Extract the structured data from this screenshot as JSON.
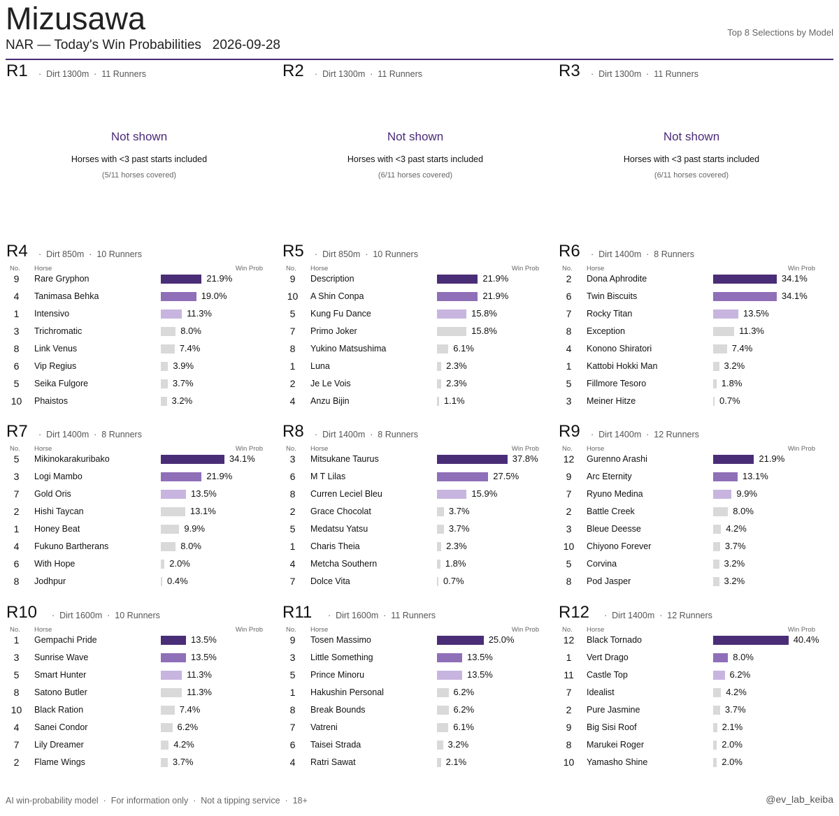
{
  "header": {
    "venue": "Mizusawa",
    "subtitle": "NAR — Today's Win Probabilities",
    "date": "2026-09-28",
    "right_label": "Top 8 Selections by Model"
  },
  "column_headers": {
    "no": "No.",
    "horse": "Horse",
    "prob": "Win Prob"
  },
  "colors": {
    "accent": "#4a2a78",
    "rank1": "#4a2d77",
    "rank2": "#8e6fb8",
    "rank3": "#c7b5df",
    "other": "#d9d9d9"
  },
  "races": [
    {
      "race": "R1",
      "info": "·  Dirt 1300m  ·  11 Runners",
      "not_shown": true,
      "not_shown_title": "Not shown",
      "not_shown_desc": "Horses with <3 past starts included",
      "coverage": "(5/11 horses covered)"
    },
    {
      "race": "R2",
      "info": "·  Dirt 1300m  ·  11 Runners",
      "not_shown": true,
      "not_shown_title": "Not shown",
      "not_shown_desc": "Horses with <3 past starts included",
      "coverage": "(6/11 horses covered)"
    },
    {
      "race": "R3",
      "info": "·  Dirt 1300m  ·  11 Runners",
      "not_shown": true,
      "not_shown_title": "Not shown",
      "not_shown_desc": "Horses with <3 past starts included",
      "coverage": "(6/11 horses covered)"
    },
    {
      "race": "R4",
      "info": "·  Dirt 850m  ·  10 Runners",
      "runners": [
        {
          "no": "9",
          "horse": "Rare Gryphon",
          "prob": 21.9,
          "label": "21.9%"
        },
        {
          "no": "4",
          "horse": "Tanimasa Behka",
          "prob": 19.0,
          "label": "19.0%"
        },
        {
          "no": "1",
          "horse": "Intensivo",
          "prob": 11.3,
          "label": "11.3%"
        },
        {
          "no": "3",
          "horse": "Trichromatic",
          "prob": 8.0,
          "label": "8.0%"
        },
        {
          "no": "8",
          "horse": "Link Venus",
          "prob": 7.4,
          "label": "7.4%"
        },
        {
          "no": "6",
          "horse": "Vip Regius",
          "prob": 3.9,
          "label": "3.9%"
        },
        {
          "no": "5",
          "horse": "Seika Fulgore",
          "prob": 3.7,
          "label": "3.7%"
        },
        {
          "no": "10",
          "horse": "Phaistos",
          "prob": 3.2,
          "label": "3.2%"
        }
      ]
    },
    {
      "race": "R5",
      "info": "·  Dirt 850m  ·  10 Runners",
      "runners": [
        {
          "no": "9",
          "horse": "Description",
          "prob": 21.9,
          "label": "21.9%"
        },
        {
          "no": "10",
          "horse": "A Shin Conpa",
          "prob": 21.9,
          "label": "21.9%"
        },
        {
          "no": "5",
          "horse": "Kung Fu Dance",
          "prob": 15.8,
          "label": "15.8%"
        },
        {
          "no": "7",
          "horse": "Primo Joker",
          "prob": 15.8,
          "label": "15.8%"
        },
        {
          "no": "8",
          "horse": "Yukino Matsushima",
          "prob": 6.1,
          "label": "6.1%"
        },
        {
          "no": "1",
          "horse": "Luna",
          "prob": 2.3,
          "label": "2.3%"
        },
        {
          "no": "2",
          "horse": "Je Le Vois",
          "prob": 2.3,
          "label": "2.3%"
        },
        {
          "no": "4",
          "horse": "Anzu Bijin",
          "prob": 1.1,
          "label": "1.1%"
        }
      ]
    },
    {
      "race": "R6",
      "info": "·  Dirt 1400m  ·  8 Runners",
      "runners": [
        {
          "no": "2",
          "horse": "Dona Aphrodite",
          "prob": 34.1,
          "label": "34.1%"
        },
        {
          "no": "6",
          "horse": "Twin Biscuits",
          "prob": 34.1,
          "label": "34.1%"
        },
        {
          "no": "7",
          "horse": "Rocky Titan",
          "prob": 13.5,
          "label": "13.5%"
        },
        {
          "no": "8",
          "horse": "Exception",
          "prob": 11.3,
          "label": "11.3%"
        },
        {
          "no": "4",
          "horse": "Konono Shiratori",
          "prob": 7.4,
          "label": "7.4%"
        },
        {
          "no": "1",
          "horse": "Kattobi Hokki Man",
          "prob": 3.2,
          "label": "3.2%"
        },
        {
          "no": "5",
          "horse": "Fillmore Tesoro",
          "prob": 1.8,
          "label": "1.8%"
        },
        {
          "no": "3",
          "horse": "Meiner Hitze",
          "prob": 0.7,
          "label": "0.7%"
        }
      ]
    },
    {
      "race": "R7",
      "info": "·  Dirt 1400m  ·  8 Runners",
      "runners": [
        {
          "no": "5",
          "horse": "Mikinokarakuribako",
          "prob": 34.1,
          "label": "34.1%"
        },
        {
          "no": "3",
          "horse": "Logi Mambo",
          "prob": 21.9,
          "label": "21.9%"
        },
        {
          "no": "7",
          "horse": "Gold Oris",
          "prob": 13.5,
          "label": "13.5%"
        },
        {
          "no": "2",
          "horse": "Hishi Taycan",
          "prob": 13.1,
          "label": "13.1%"
        },
        {
          "no": "1",
          "horse": "Honey Beat",
          "prob": 9.9,
          "label": "9.9%"
        },
        {
          "no": "4",
          "horse": "Fukuno Bartherans",
          "prob": 8.0,
          "label": "8.0%"
        },
        {
          "no": "6",
          "horse": "With Hope",
          "prob": 2.0,
          "label": "2.0%"
        },
        {
          "no": "8",
          "horse": "Jodhpur",
          "prob": 0.4,
          "label": "0.4%"
        }
      ]
    },
    {
      "race": "R8",
      "info": "·  Dirt 1400m  ·  8 Runners",
      "runners": [
        {
          "no": "3",
          "horse": "Mitsukane Taurus",
          "prob": 37.8,
          "label": "37.8%"
        },
        {
          "no": "6",
          "horse": "M T Lilas",
          "prob": 27.5,
          "label": "27.5%"
        },
        {
          "no": "8",
          "horse": "Curren Leciel Bleu",
          "prob": 15.9,
          "label": "15.9%"
        },
        {
          "no": "2",
          "horse": "Grace Chocolat",
          "prob": 3.7,
          "label": "3.7%"
        },
        {
          "no": "5",
          "horse": "Medatsu Yatsu",
          "prob": 3.7,
          "label": "3.7%"
        },
        {
          "no": "1",
          "horse": "Charis Theia",
          "prob": 2.3,
          "label": "2.3%"
        },
        {
          "no": "4",
          "horse": "Metcha Southern",
          "prob": 1.8,
          "label": "1.8%"
        },
        {
          "no": "7",
          "horse": "Dolce Vita",
          "prob": 0.7,
          "label": "0.7%"
        }
      ]
    },
    {
      "race": "R9",
      "info": "·  Dirt 1400m  ·  12 Runners",
      "runners": [
        {
          "no": "12",
          "horse": "Gurenno Arashi",
          "prob": 21.9,
          "label": "21.9%"
        },
        {
          "no": "9",
          "horse": "Arc Eternity",
          "prob": 13.1,
          "label": "13.1%"
        },
        {
          "no": "7",
          "horse": "Ryuno Medina",
          "prob": 9.9,
          "label": "9.9%"
        },
        {
          "no": "2",
          "horse": "Battle Creek",
          "prob": 8.0,
          "label": "8.0%"
        },
        {
          "no": "3",
          "horse": "Bleue Deesse",
          "prob": 4.2,
          "label": "4.2%"
        },
        {
          "no": "10",
          "horse": "Chiyono Forever",
          "prob": 3.7,
          "label": "3.7%"
        },
        {
          "no": "5",
          "horse": "Corvina",
          "prob": 3.2,
          "label": "3.2%"
        },
        {
          "no": "8",
          "horse": "Pod Jasper",
          "prob": 3.2,
          "label": "3.2%"
        }
      ]
    },
    {
      "race": "R10",
      "info": "·  Dirt 1600m  ·  10 Runners",
      "runners": [
        {
          "no": "1",
          "horse": "Gempachi Pride",
          "prob": 13.5,
          "label": "13.5%"
        },
        {
          "no": "3",
          "horse": "Sunrise Wave",
          "prob": 13.5,
          "label": "13.5%"
        },
        {
          "no": "5",
          "horse": "Smart Hunter",
          "prob": 11.3,
          "label": "11.3%"
        },
        {
          "no": "8",
          "horse": "Satono Butler",
          "prob": 11.3,
          "label": "11.3%"
        },
        {
          "no": "10",
          "horse": "Black Ration",
          "prob": 7.4,
          "label": "7.4%"
        },
        {
          "no": "4",
          "horse": "Sanei Condor",
          "prob": 6.2,
          "label": "6.2%"
        },
        {
          "no": "7",
          "horse": "Lily Dreamer",
          "prob": 4.2,
          "label": "4.2%"
        },
        {
          "no": "2",
          "horse": "Flame Wings",
          "prob": 3.7,
          "label": "3.7%"
        }
      ]
    },
    {
      "race": "R11",
      "info": "·  Dirt 1600m  ·  11 Runners",
      "runners": [
        {
          "no": "9",
          "horse": "Tosen Massimo",
          "prob": 25.0,
          "label": "25.0%"
        },
        {
          "no": "3",
          "horse": "Little Something",
          "prob": 13.5,
          "label": "13.5%"
        },
        {
          "no": "5",
          "horse": "Prince Minoru",
          "prob": 13.5,
          "label": "13.5%"
        },
        {
          "no": "1",
          "horse": "Hakushin Personal",
          "prob": 6.2,
          "label": "6.2%"
        },
        {
          "no": "8",
          "horse": "Break Bounds",
          "prob": 6.2,
          "label": "6.2%"
        },
        {
          "no": "7",
          "horse": "Vatreni",
          "prob": 6.1,
          "label": "6.1%"
        },
        {
          "no": "6",
          "horse": "Taisei Strada",
          "prob": 3.2,
          "label": "3.2%"
        },
        {
          "no": "4",
          "horse": "Ratri Sawat",
          "prob": 2.1,
          "label": "2.1%"
        }
      ]
    },
    {
      "race": "R12",
      "info": "·  Dirt 1400m  ·  12 Runners",
      "runners": [
        {
          "no": "12",
          "horse": "Black Tornado",
          "prob": 40.4,
          "label": "40.4%"
        },
        {
          "no": "1",
          "horse": "Vert Drago",
          "prob": 8.0,
          "label": "8.0%"
        },
        {
          "no": "11",
          "horse": "Castle Top",
          "prob": 6.2,
          "label": "6.2%"
        },
        {
          "no": "7",
          "horse": "Idealist",
          "prob": 4.2,
          "label": "4.2%"
        },
        {
          "no": "2",
          "horse": "Pure Jasmine",
          "prob": 3.7,
          "label": "3.7%"
        },
        {
          "no": "9",
          "horse": "Big Sisi Roof",
          "prob": 2.1,
          "label": "2.1%"
        },
        {
          "no": "8",
          "horse": "Marukei Roger",
          "prob": 2.0,
          "label": "2.0%"
        },
        {
          "no": "10",
          "horse": "Yamasho Shine",
          "prob": 2.0,
          "label": "2.0%"
        }
      ]
    }
  ],
  "footer": {
    "left": "AI win-probability model  ·  For information only  ·  Not a tipping service  ·  18+",
    "right": "@ev_lab_keiba"
  }
}
